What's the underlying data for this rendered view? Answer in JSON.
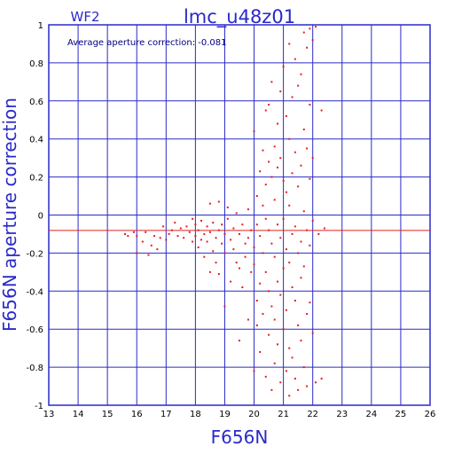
{
  "chart_data": {
    "type": "scatter",
    "title": "lmc_u48z01",
    "subtitle": "WF2",
    "xlabel": "F656N",
    "ylabel": "F656N aperture correction",
    "annotation": "Average aperture correction: -0.081",
    "reference_line": {
      "y": -0.081,
      "color": "#e02020"
    },
    "xlim": [
      13,
      26
    ],
    "ylim": [
      -1,
      1
    ],
    "xticks": [
      "13",
      "14",
      "15",
      "16",
      "17",
      "18",
      "19",
      "20",
      "21",
      "22",
      "23",
      "24",
      "25",
      "26"
    ],
    "yticks": [
      "-1",
      "-0.8",
      "-0.6",
      "-0.4",
      "-0.2",
      "0",
      "0.2",
      "0.4",
      "0.6",
      "0.8",
      "1"
    ],
    "grid": true,
    "colors": {
      "axes": "#2a2ac8",
      "points": "#e02020",
      "ticks": "#000000"
    },
    "points": [
      [
        15.6,
        -0.1
      ],
      [
        15.7,
        -0.11
      ],
      [
        15.9,
        -0.09
      ],
      [
        16.0,
        -0.11
      ],
      [
        16.0,
        -0.2
      ],
      [
        16.2,
        -0.14
      ],
      [
        16.3,
        -0.09
      ],
      [
        16.4,
        -0.21
      ],
      [
        16.5,
        -0.16
      ],
      [
        16.6,
        -0.11
      ],
      [
        16.7,
        -0.18
      ],
      [
        16.8,
        -0.12
      ],
      [
        16.9,
        -0.06
      ],
      [
        17.0,
        -0.13
      ],
      [
        17.1,
        -0.1
      ],
      [
        17.2,
        -0.08
      ],
      [
        17.3,
        -0.04
      ],
      [
        17.4,
        -0.11
      ],
      [
        17.5,
        -0.07
      ],
      [
        17.6,
        -0.12
      ],
      [
        17.7,
        -0.06
      ],
      [
        17.8,
        -0.09
      ],
      [
        17.9,
        -0.02
      ],
      [
        17.9,
        -0.14
      ],
      [
        18.0,
        -0.05
      ],
      [
        18.0,
        -0.11
      ],
      [
        18.1,
        -0.08
      ],
      [
        18.1,
        -0.17
      ],
      [
        18.2,
        -0.13
      ],
      [
        18.2,
        -0.03
      ],
      [
        18.3,
        -0.1
      ],
      [
        18.3,
        -0.22
      ],
      [
        18.4,
        -0.06
      ],
      [
        18.4,
        -0.14
      ],
      [
        18.5,
        0.06
      ],
      [
        18.5,
        -0.09
      ],
      [
        18.5,
        -0.3
      ],
      [
        18.6,
        -0.04
      ],
      [
        18.6,
        -0.19
      ],
      [
        18.7,
        -0.12
      ],
      [
        18.7,
        -0.25
      ],
      [
        18.8,
        0.07
      ],
      [
        18.8,
        -0.08
      ],
      [
        18.8,
        -0.31
      ],
      [
        18.9,
        -0.15
      ],
      [
        18.9,
        -0.05
      ],
      [
        19.0,
        -0.48
      ],
      [
        19.0,
        -0.2
      ],
      [
        19.0,
        -0.1
      ],
      [
        19.1,
        0.04
      ],
      [
        19.1,
        -0.02
      ],
      [
        19.2,
        -0.13
      ],
      [
        19.2,
        -0.35
      ],
      [
        19.3,
        -0.07
      ],
      [
        19.3,
        -0.18
      ],
      [
        19.4,
        -0.25
      ],
      [
        19.4,
        0.01
      ],
      [
        19.5,
        -0.1
      ],
      [
        19.5,
        -0.28
      ],
      [
        19.5,
        -0.66
      ],
      [
        19.6,
        -0.05
      ],
      [
        19.6,
        -0.38
      ],
      [
        19.7,
        -0.15
      ],
      [
        19.7,
        -0.22
      ],
      [
        19.8,
        0.03
      ],
      [
        19.8,
        -0.12
      ],
      [
        19.8,
        -0.55
      ],
      [
        19.9,
        -0.3
      ],
      [
        19.9,
        -0.08
      ],
      [
        20.0,
        0.44
      ],
      [
        20.0,
        -0.17
      ],
      [
        20.0,
        -0.26
      ],
      [
        20.0,
        -0.82
      ],
      [
        20.1,
        0.1
      ],
      [
        20.1,
        -0.05
      ],
      [
        20.1,
        -0.45
      ],
      [
        20.1,
        -0.58
      ],
      [
        20.2,
        0.23
      ],
      [
        20.2,
        -0.11
      ],
      [
        20.2,
        -0.36
      ],
      [
        20.2,
        -0.72
      ],
      [
        20.3,
        0.34
      ],
      [
        20.3,
        0.05
      ],
      [
        20.3,
        -0.2
      ],
      [
        20.3,
        -0.52
      ],
      [
        20.4,
        0.55
      ],
      [
        20.4,
        0.16
      ],
      [
        20.4,
        -0.02
      ],
      [
        20.4,
        -0.3
      ],
      [
        20.4,
        -0.85
      ],
      [
        20.5,
        0.58
      ],
      [
        20.5,
        0.28
      ],
      [
        20.5,
        -0.08
      ],
      [
        20.5,
        -0.4
      ],
      [
        20.5,
        -0.63
      ],
      [
        20.6,
        0.7
      ],
      [
        20.6,
        0.2
      ],
      [
        20.6,
        -0.15
      ],
      [
        20.6,
        -0.48
      ],
      [
        20.6,
        -0.92
      ],
      [
        20.7,
        0.36
      ],
      [
        20.7,
        0.08
      ],
      [
        20.7,
        -0.22
      ],
      [
        20.7,
        -0.55
      ],
      [
        20.7,
        -0.78
      ],
      [
        20.8,
        0.48
      ],
      [
        20.8,
        0.25
      ],
      [
        20.8,
        -0.05
      ],
      [
        20.8,
        -0.35
      ],
      [
        20.8,
        -0.68
      ],
      [
        20.9,
        0.65
      ],
      [
        20.9,
        0.3
      ],
      [
        20.9,
        -0.12
      ],
      [
        20.9,
        -0.42
      ],
      [
        20.9,
        -0.88
      ],
      [
        21.0,
        0.78
      ],
      [
        21.0,
        0.18
      ],
      [
        21.0,
        -0.02
      ],
      [
        21.0,
        -0.28
      ],
      [
        21.0,
        -0.6
      ],
      [
        21.1,
        0.52
      ],
      [
        21.1,
        0.12
      ],
      [
        21.1,
        -0.18
      ],
      [
        21.1,
        -0.5
      ],
      [
        21.1,
        -0.82
      ],
      [
        21.2,
        0.9
      ],
      [
        21.2,
        0.4
      ],
      [
        21.2,
        0.05
      ],
      [
        21.2,
        -0.25
      ],
      [
        21.2,
        -0.7
      ],
      [
        21.2,
        -0.95
      ],
      [
        21.3,
        0.62
      ],
      [
        21.3,
        0.22
      ],
      [
        21.3,
        -0.1
      ],
      [
        21.3,
        -0.38
      ],
      [
        21.3,
        -0.75
      ],
      [
        21.4,
        0.82
      ],
      [
        21.4,
        0.33
      ],
      [
        21.4,
        -0.06
      ],
      [
        21.4,
        -0.45
      ],
      [
        21.4,
        -0.86
      ],
      [
        21.5,
        0.68
      ],
      [
        21.5,
        0.15
      ],
      [
        21.5,
        -0.2
      ],
      [
        21.5,
        -0.58
      ],
      [
        21.5,
        -0.92
      ],
      [
        21.6,
        0.74
      ],
      [
        21.6,
        0.26
      ],
      [
        21.6,
        -0.14
      ],
      [
        21.6,
        -0.33
      ],
      [
        21.6,
        -0.66
      ],
      [
        21.7,
        0.96
      ],
      [
        21.7,
        0.45
      ],
      [
        21.7,
        0.02
      ],
      [
        21.7,
        -0.27
      ],
      [
        21.7,
        -0.8
      ],
      [
        21.8,
        0.88
      ],
      [
        21.8,
        0.35
      ],
      [
        21.8,
        -0.08
      ],
      [
        21.8,
        -0.52
      ],
      [
        21.8,
        -0.9
      ],
      [
        21.9,
        0.98
      ],
      [
        21.9,
        0.58
      ],
      [
        21.9,
        0.19
      ],
      [
        21.9,
        -0.16
      ],
      [
        21.9,
        -0.46
      ],
      [
        22.0,
        0.92
      ],
      [
        22.0,
        0.3
      ],
      [
        22.0,
        -0.03
      ],
      [
        22.0,
        -0.62
      ],
      [
        22.1,
        0.99
      ],
      [
        22.1,
        -0.88
      ],
      [
        22.2,
        -0.1
      ],
      [
        22.3,
        0.55
      ],
      [
        22.3,
        -0.86
      ],
      [
        22.4,
        -0.07
      ]
    ]
  }
}
